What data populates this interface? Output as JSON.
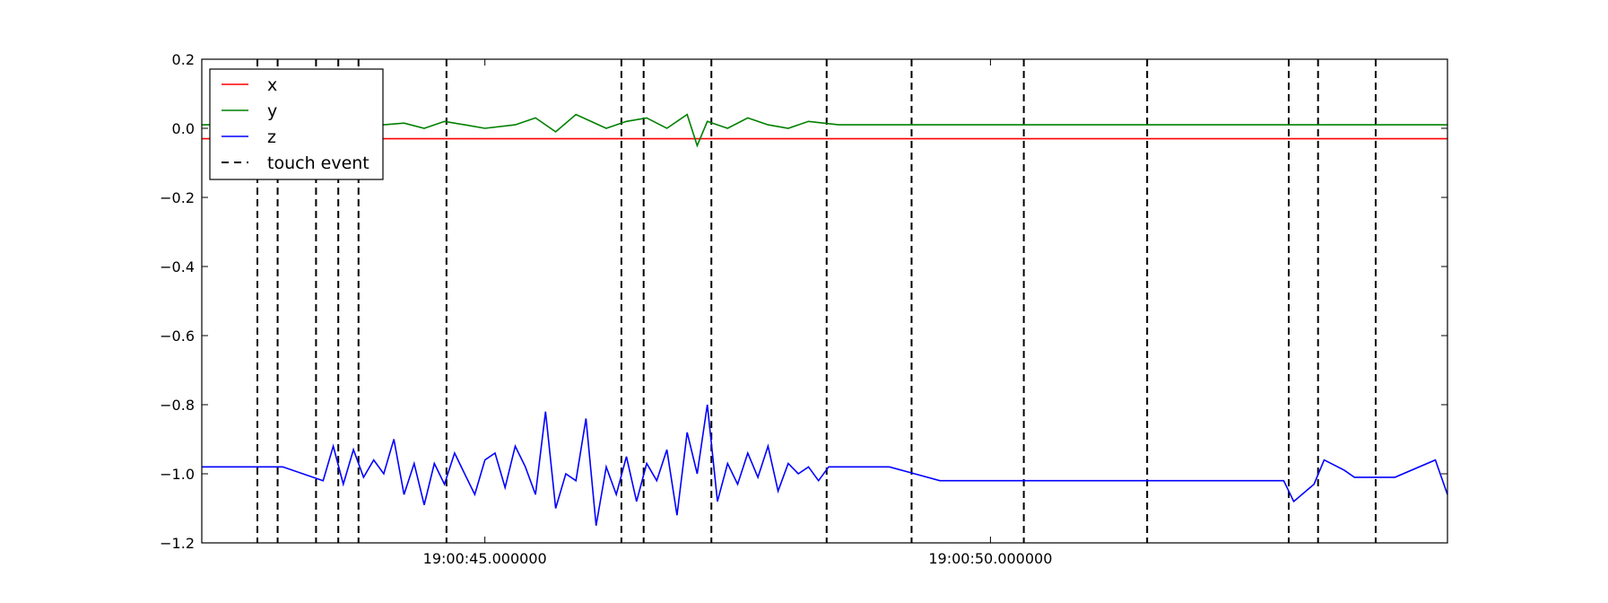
{
  "chart_data": {
    "type": "line",
    "title": "",
    "xlabel": "",
    "ylabel": "",
    "x_unit": "seconds",
    "xlim": [
      42.2,
      54.52
    ],
    "ylim": [
      -1.2,
      0.2
    ],
    "yticks": [
      0.2,
      0.0,
      -0.2,
      -0.4,
      -0.6,
      -0.8,
      -1.0,
      -1.2
    ],
    "ytick_labels": [
      "0.2",
      "0.0",
      "−0.2",
      "−0.4",
      "−0.6",
      "−0.8",
      "−1.0",
      "−1.2"
    ],
    "xticks": [
      {
        "value": 45.0,
        "label": "19:00:45.000000"
      },
      {
        "value": 50.0,
        "label": "19:00:50.000000"
      }
    ],
    "grid": false,
    "legend_placement": "top-left",
    "legend": [
      {
        "label": "x",
        "color": "#ff0000",
        "style": "solid"
      },
      {
        "label": "y",
        "color": "#008000",
        "style": "solid"
      },
      {
        "label": "z",
        "color": "#0000ff",
        "style": "solid"
      },
      {
        "label": "touch event",
        "color": "#000000",
        "style": "dashed"
      }
    ],
    "series": [
      {
        "name": "x",
        "color": "#ff0000",
        "x": [
          42.2,
          54.52
        ],
        "values": [
          -0.03,
          -0.03
        ]
      },
      {
        "name": "y",
        "color": "#008000",
        "x": [
          42.2,
          42.6,
          43.0,
          43.4,
          43.6,
          43.8,
          44.0,
          44.2,
          44.4,
          44.6,
          44.8,
          45.0,
          45.3,
          45.5,
          45.7,
          45.9,
          46.2,
          46.4,
          46.6,
          46.8,
          47.0,
          47.1,
          47.2,
          47.4,
          47.6,
          47.8,
          48.0,
          48.2,
          48.5,
          48.8,
          49.2,
          49.6,
          50.0,
          50.3,
          50.6,
          51.0,
          51.5,
          52.0,
          52.5,
          53.0,
          53.5,
          54.0,
          54.52
        ],
        "values": [
          0.01,
          0.01,
          0.01,
          0.02,
          0.0,
          0.03,
          0.01,
          0.015,
          0.0,
          0.02,
          0.01,
          0.0,
          0.01,
          0.03,
          -0.01,
          0.04,
          0.0,
          0.02,
          0.03,
          0.0,
          0.04,
          -0.05,
          0.02,
          0.0,
          0.03,
          0.01,
          0.0,
          0.02,
          0.01,
          0.01,
          0.01,
          0.01,
          0.01,
          0.01,
          0.01,
          0.01,
          0.01,
          0.01,
          0.01,
          0.01,
          0.01,
          0.01,
          0.01
        ]
      },
      {
        "name": "z",
        "color": "#0000ff",
        "x": [
          42.2,
          43.0,
          43.4,
          43.5,
          43.6,
          43.7,
          43.8,
          43.9,
          44.0,
          44.1,
          44.2,
          44.3,
          44.4,
          44.5,
          44.6,
          44.7,
          44.8,
          44.9,
          45.0,
          45.1,
          45.2,
          45.3,
          45.4,
          45.5,
          45.6,
          45.7,
          45.8,
          45.9,
          46.0,
          46.1,
          46.2,
          46.3,
          46.4,
          46.5,
          46.6,
          46.7,
          46.8,
          46.9,
          47.0,
          47.1,
          47.2,
          47.3,
          47.4,
          47.5,
          47.6,
          47.7,
          47.8,
          47.9,
          48.0,
          48.1,
          48.2,
          48.3,
          48.4,
          48.5,
          49.0,
          49.5,
          52.9,
          53.0,
          53.2,
          53.3,
          53.5,
          53.6,
          54.0,
          54.4,
          54.52
        ],
        "values": [
          -0.98,
          -0.98,
          -1.02,
          -0.92,
          -1.03,
          -0.93,
          -1.01,
          -0.96,
          -1.0,
          -0.9,
          -1.06,
          -0.97,
          -1.09,
          -0.97,
          -1.03,
          -0.94,
          -1.0,
          -1.06,
          -0.96,
          -0.94,
          -1.04,
          -0.92,
          -0.98,
          -1.06,
          -0.82,
          -1.1,
          -1.0,
          -1.02,
          -0.84,
          -1.15,
          -0.98,
          -1.06,
          -0.95,
          -1.08,
          -0.97,
          -1.02,
          -0.93,
          -1.12,
          -0.88,
          -1.0,
          -0.8,
          -1.08,
          -0.97,
          -1.03,
          -0.94,
          -1.01,
          -0.92,
          -1.05,
          -0.97,
          -1.0,
          -0.98,
          -1.02,
          -0.98,
          -0.98,
          -0.98,
          -1.02,
          -1.02,
          -1.08,
          -1.03,
          -0.96,
          -0.99,
          -1.01,
          -1.01,
          -0.96,
          -1.06
        ]
      }
    ],
    "touch_events": [
      42.75,
      42.95,
      43.33,
      43.55,
      43.75,
      44.62,
      46.35,
      46.57,
      47.24,
      48.38,
      49.22,
      50.33,
      51.55,
      52.95,
      53.24,
      53.81
    ]
  }
}
